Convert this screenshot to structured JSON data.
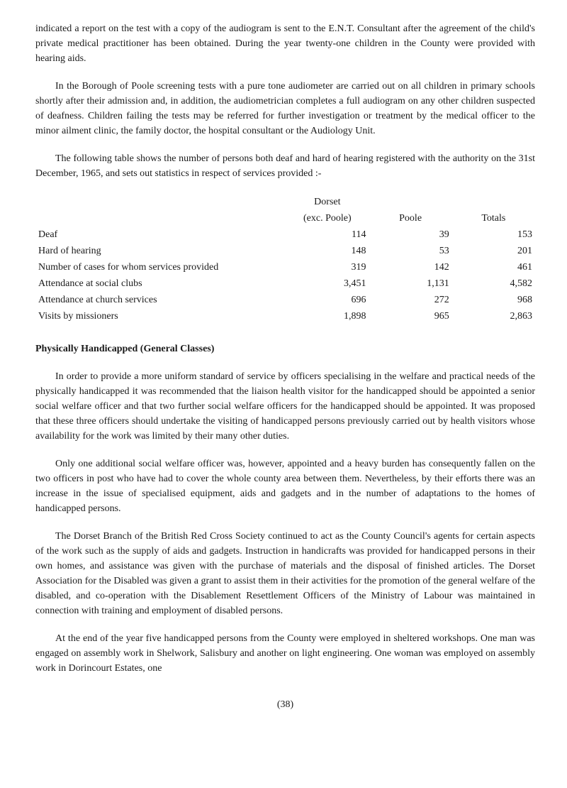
{
  "para1": "indicated a report on the test with a copy of the audiogram is sent to the E.N.T. Consultant after the agreement of the child's private medical practitioner has been obtained. During the year twenty-one children in the County were provided with hearing aids.",
  "para2": "In the Borough of Poole screening tests with a pure tone audiometer are carried out on all children in primary schools shortly after their admission and, in addition, the audiometrician completes a full audiogram on any other children suspected of deafness. Children failing the tests may be referred for further investigation or treatment by the medical officer to the minor ailment clinic, the family doctor, the hospital consultant or the Audiology Unit.",
  "para3": "The following table shows the number of persons both deaf and hard of hearing registered with the authority on the 31st December, 1965, and sets out statistics in respect of services provided :-",
  "table": {
    "header": {
      "col1_top": "Dorset",
      "col1_bottom": "(exc. Poole)",
      "col2": "Poole",
      "col3": "Totals"
    },
    "rows": [
      {
        "label": "Deaf",
        "c1": "114",
        "c2": "39",
        "c3": "153"
      },
      {
        "label": "Hard of hearing",
        "c1": "148",
        "c2": "53",
        "c3": "201"
      },
      {
        "label": "Number of cases for whom services provided",
        "c1": "319",
        "c2": "142",
        "c3": "461"
      },
      {
        "label": "Attendance at social clubs",
        "c1": "3,451",
        "c2": "1,131",
        "c3": "4,582"
      },
      {
        "label": "Attendance at church services",
        "c1": "696",
        "c2": "272",
        "c3": "968"
      },
      {
        "label": "Visits by missioners",
        "c1": "1,898",
        "c2": "965",
        "c3": "2,863"
      }
    ]
  },
  "section_heading": "Physically Handicapped (General Classes)",
  "para4": "In order to provide a more uniform standard of service by officers specialising in the welfare and practical needs of the physically handicapped it was recommended that the liaison health visitor for the handicapped should be appointed a senior social welfare officer and that two further social welfare officers for the handicapped should be appointed. It was proposed that these three officers should undertake the visiting of handicapped persons previously carried out by health visitors whose availability for the work was limited by their many other duties.",
  "para5": "Only one additional social welfare officer was, however, appointed and a heavy burden has consequently fallen on the two officers in post who have had to cover the whole county area between them. Nevertheless, by their efforts there was an increase in the issue of specialised equipment, aids and gadgets and in the number of adaptations to the homes of handicapped persons.",
  "para6": "The Dorset Branch of the British Red Cross Society continued to act as the County Council's agents for certain aspects of the work such as the supply of aids and gadgets. Instruction in handicrafts was provided for handicapped persons in their own homes, and assistance was given with the purchase of materials and the disposal of finished articles. The Dorset Association for the Disabled was given a grant to assist them in their activities for the promotion of the general welfare of the disabled, and co-operation with the Disablement Resettlement Officers of the Ministry of Labour was maintained in connection with training and employment of disabled persons.",
  "para7": "At the end of the year five handicapped persons from the County were employed in sheltered workshops. One man was engaged on assembly work in Shelwork, Salisbury and another on light engineering. One woman was employed on assembly work in Dorincourt Estates, one",
  "page_number": "(38)"
}
